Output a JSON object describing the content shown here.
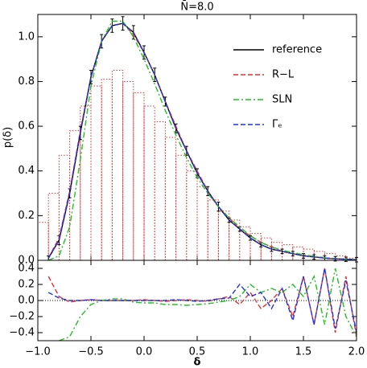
{
  "chart_data": [
    {
      "type": "line",
      "title": "N̄=8.0",
      "ylabel": "p(δ)",
      "xlim": [
        -1.0,
        2.0
      ],
      "ylim": [
        0,
        1.1
      ],
      "xticks": [
        -1,
        -0.5,
        0,
        0.5,
        1,
        1.5,
        2
      ],
      "yticks": [
        {
          "value": 0,
          "label": "0.0"
        },
        {
          "value": 0.2,
          "label": "0.2"
        },
        {
          "value": 0.4,
          "label": "0.4"
        },
        {
          "value": 0.6,
          "label": "0.6"
        },
        {
          "value": 0.8,
          "label": "0.8"
        },
        {
          "value": 1.0,
          "label": "1.0"
        }
      ],
      "x": [
        -0.9,
        -0.8,
        -0.7,
        -0.6,
        -0.5,
        -0.4,
        -0.3,
        -0.2,
        -0.1,
        0.0,
        0.1,
        0.2,
        0.3,
        0.4,
        0.5,
        0.6,
        0.7,
        0.8,
        0.9,
        1.0,
        1.1,
        1.2,
        1.3,
        1.4,
        1.5,
        1.6,
        1.7,
        1.8,
        1.9,
        2.0
      ],
      "histogram": {
        "color": "#e03030",
        "bins": [
          -1.0,
          -0.9,
          -0.8,
          -0.7,
          -0.6,
          -0.5,
          -0.4,
          -0.3,
          -0.2,
          -0.1,
          0.0,
          0.1,
          0.2,
          0.3,
          0.4,
          0.5,
          0.6,
          0.7,
          0.8,
          0.9,
          1.0,
          1.1,
          1.2,
          1.3,
          1.4,
          1.5,
          1.6,
          1.7,
          1.8,
          1.9,
          2.0
        ],
        "counts": [
          0.17,
          0.3,
          0.47,
          0.58,
          0.69,
          0.78,
          0.81,
          0.85,
          0.8,
          0.75,
          0.69,
          0.62,
          0.55,
          0.47,
          0.4,
          0.33,
          0.27,
          0.22,
          0.18,
          0.15,
          0.12,
          0.1,
          0.08,
          0.07,
          0.06,
          0.05,
          0.04,
          0.03,
          0.02,
          0.01
        ]
      },
      "series": [
        {
          "name": "reference",
          "color": "#000000",
          "linestyle": "solid",
          "values": [
            0.01,
            0.09,
            0.3,
            0.57,
            0.82,
            0.98,
            1.05,
            1.06,
            1.02,
            0.93,
            0.83,
            0.71,
            0.59,
            0.49,
            0.39,
            0.31,
            0.24,
            0.18,
            0.14,
            0.1,
            0.07,
            0.05,
            0.04,
            0.03,
            0.02,
            0.015,
            0.01,
            0.007,
            0.005,
            0.003
          ],
          "errors": [
            0.01,
            0.02,
            0.02,
            0.03,
            0.03,
            0.03,
            0.03,
            0.03,
            0.03,
            0.03,
            0.03,
            0.02,
            0.02,
            0.02,
            0.02,
            0.02,
            0.02,
            0.01,
            0.01,
            0.01,
            0.01,
            0.01,
            0.01,
            0.01,
            0.01,
            0.01,
            0.01,
            0.01,
            0.01,
            0.01
          ]
        },
        {
          "name": "R−L",
          "color": "#e03030",
          "linestyle": "dashed",
          "values": [
            0.01,
            0.1,
            0.31,
            0.58,
            0.82,
            0.98,
            1.05,
            1.06,
            1.01,
            0.93,
            0.83,
            0.71,
            0.6,
            0.49,
            0.4,
            0.31,
            0.24,
            0.19,
            0.14,
            0.11,
            0.08,
            0.06,
            0.04,
            0.03,
            0.02,
            0.015,
            0.01,
            0.007,
            0.005,
            0.003
          ]
        },
        {
          "name": "SLN",
          "color": "#20c020",
          "linestyle": "dashdot",
          "values": [
            0.0,
            0.02,
            0.15,
            0.45,
            0.78,
            0.98,
            1.07,
            1.07,
            1.0,
            0.9,
            0.79,
            0.67,
            0.56,
            0.46,
            0.37,
            0.3,
            0.24,
            0.19,
            0.15,
            0.11,
            0.08,
            0.06,
            0.045,
            0.035,
            0.025,
            0.018,
            0.012,
            0.008,
            0.005,
            0.003
          ]
        },
        {
          "name": "Γₑ",
          "color": "#2030e0",
          "linestyle": "dashed",
          "values": [
            0.01,
            0.09,
            0.3,
            0.57,
            0.82,
            0.98,
            1.05,
            1.06,
            1.02,
            0.93,
            0.83,
            0.71,
            0.59,
            0.49,
            0.39,
            0.31,
            0.24,
            0.18,
            0.14,
            0.1,
            0.07,
            0.05,
            0.04,
            0.03,
            0.02,
            0.015,
            0.01,
            0.007,
            0.005,
            0.003
          ]
        }
      ]
    },
    {
      "type": "line",
      "xlabel": "δ",
      "xlim": [
        -1.0,
        2.0
      ],
      "ylim": [
        -0.5,
        0.5
      ],
      "xticks": [
        {
          "value": -1,
          "label": "−1.0"
        },
        {
          "value": -0.5,
          "label": "−0.5"
        },
        {
          "value": 0,
          "label": "0.0"
        },
        {
          "value": 0.5,
          "label": "0.5"
        },
        {
          "value": 1,
          "label": "1.0"
        },
        {
          "value": 1.5,
          "label": "1.5"
        },
        {
          "value": 2,
          "label": "2.0"
        }
      ],
      "yticks": [
        {
          "value": -0.4,
          "label": "−0.4"
        },
        {
          "value": -0.2,
          "label": "−0.2"
        },
        {
          "value": 0,
          "label": "0.0"
        },
        {
          "value": 0.2,
          "label": "0.2"
        },
        {
          "value": 0.4,
          "label": "0.4"
        }
      ],
      "ref_line": 0,
      "x": [
        -0.9,
        -0.8,
        -0.7,
        -0.6,
        -0.5,
        -0.4,
        -0.3,
        -0.2,
        -0.1,
        0.0,
        0.1,
        0.2,
        0.3,
        0.4,
        0.5,
        0.6,
        0.7,
        0.8,
        0.9,
        1.0,
        1.1,
        1.2,
        1.3,
        1.4,
        1.5,
        1.6,
        1.7,
        1.8,
        1.9,
        2.0
      ],
      "series": [
        {
          "color": "#e03030",
          "linestyle": "dashed",
          "values": [
            0.3,
            0.05,
            -0.02,
            0.0,
            0.01,
            0.0,
            0.0,
            0.0,
            0.0,
            0.01,
            0.0,
            -0.01,
            0.0,
            0.01,
            0.0,
            -0.01,
            0.02,
            0.05,
            -0.05,
            0.1,
            -0.1,
            0.0,
            0.15,
            -0.2,
            0.3,
            -0.3,
            0.4,
            -0.4,
            0.3,
            -0.45
          ]
        },
        {
          "color": "#20c020",
          "linestyle": "dashdot",
          "values": [
            null,
            -0.5,
            -0.45,
            -0.2,
            -0.05,
            0.0,
            0.02,
            0.02,
            -0.02,
            -0.03,
            -0.03,
            -0.05,
            -0.05,
            -0.06,
            -0.05,
            -0.04,
            -0.02,
            0.0,
            0.05,
            0.2,
            0.1,
            0.15,
            0.1,
            0.2,
            0.05,
            0.3,
            -0.3,
            0.4,
            -0.2,
            -0.45
          ]
        },
        {
          "color": "#2030e0",
          "linestyle": "dashed",
          "values": [
            0.1,
            0.03,
            0.0,
            0.0,
            0.01,
            0.0,
            0.0,
            0.0,
            0.0,
            0.0,
            0.0,
            0.0,
            0.01,
            0.0,
            -0.01,
            0.0,
            0.02,
            0.03,
            0.2,
            0.05,
            0.1,
            -0.1,
            0.15,
            -0.25,
            0.3,
            -0.3,
            0.4,
            -0.35,
            0.25,
            -0.4
          ]
        }
      ]
    }
  ]
}
